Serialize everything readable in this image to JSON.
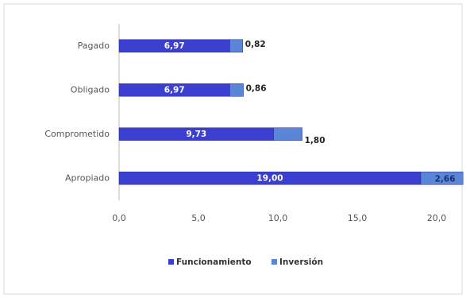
{
  "chart_data": {
    "type": "bar",
    "orientation": "horizontal",
    "stacked": true,
    "categories": [
      "Pagado",
      "Obligado",
      "Comprometido",
      "Apropiado"
    ],
    "series": [
      {
        "name": "Funcionamiento",
        "color": "#3b3fd0",
        "values": [
          6.97,
          6.97,
          9.73,
          19.0
        ],
        "value_labels": [
          "6,97",
          "6,97",
          "9,73",
          "19,00"
        ]
      },
      {
        "name": "Inversión",
        "color": "#5a86d8",
        "values": [
          0.82,
          0.86,
          1.8,
          2.66
        ],
        "value_labels": [
          "0,82",
          "0,86",
          "1,80",
          "2,66"
        ]
      }
    ],
    "xlim": [
      0,
      20
    ],
    "xticks": [
      {
        "value": 0,
        "label": "0,0"
      },
      {
        "value": 5,
        "label": "5,0"
      },
      {
        "value": 10,
        "label": "10,0"
      },
      {
        "value": 15,
        "label": "15,0"
      },
      {
        "value": 20,
        "label": "20,0"
      }
    ],
    "grid": false,
    "legend": "bottom"
  }
}
